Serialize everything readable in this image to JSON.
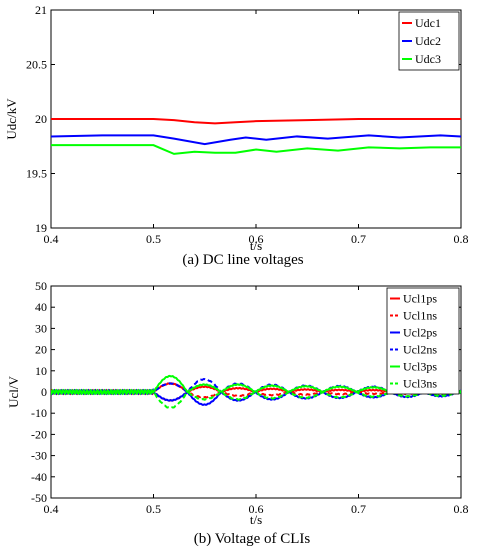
{
  "chart_data": [
    {
      "type": "line",
      "caption": "(a)  DC line voltages",
      "xlabel": "t/s",
      "ylabel": "Udc/kV",
      "xlim": [
        0.4,
        0.8
      ],
      "ylim": [
        19,
        21
      ],
      "xticks": [
        "0.4",
        "0.5",
        "0.6",
        "0.7",
        "0.8"
      ],
      "yticks": [
        "19",
        "19.5",
        "20",
        "20.5",
        "21"
      ],
      "legend_position": "top-right",
      "series": [
        {
          "name": "Udc1",
          "color": "#ff0000",
          "style": "solid",
          "points": [
            [
              0.4,
              20.0
            ],
            [
              0.5,
              20.0
            ],
            [
              0.52,
              19.99
            ],
            [
              0.54,
              19.97
            ],
            [
              0.56,
              19.96
            ],
            [
              0.58,
              19.97
            ],
            [
              0.6,
              19.98
            ],
            [
              0.65,
              19.99
            ],
            [
              0.7,
              20.0
            ],
            [
              0.8,
              20.0
            ]
          ]
        },
        {
          "name": "Udc2",
          "color": "#0000ff",
          "style": "solid",
          "points": [
            [
              0.4,
              19.84
            ],
            [
              0.45,
              19.85
            ],
            [
              0.5,
              19.85
            ],
            [
              0.52,
              19.82
            ],
            [
              0.55,
              19.77
            ],
            [
              0.575,
              19.81
            ],
            [
              0.59,
              19.83
            ],
            [
              0.61,
              19.81
            ],
            [
              0.64,
              19.84
            ],
            [
              0.67,
              19.82
            ],
            [
              0.71,
              19.85
            ],
            [
              0.74,
              19.83
            ],
            [
              0.78,
              19.85
            ],
            [
              0.8,
              19.84
            ]
          ]
        },
        {
          "name": "Udc3",
          "color": "#00ff00",
          "style": "solid",
          "points": [
            [
              0.4,
              19.76
            ],
            [
              0.45,
              19.76
            ],
            [
              0.5,
              19.76
            ],
            [
              0.51,
              19.72
            ],
            [
              0.52,
              19.68
            ],
            [
              0.54,
              19.7
            ],
            [
              0.56,
              19.69
            ],
            [
              0.58,
              19.69
            ],
            [
              0.6,
              19.72
            ],
            [
              0.62,
              19.7
            ],
            [
              0.65,
              19.73
            ],
            [
              0.68,
              19.71
            ],
            [
              0.71,
              19.74
            ],
            [
              0.74,
              19.73
            ],
            [
              0.77,
              19.74
            ],
            [
              0.8,
              19.74
            ]
          ]
        }
      ]
    },
    {
      "type": "line",
      "caption": "(b)  Voltage of CLIs",
      "xlabel": "t/s",
      "ylabel": "Ucl/V",
      "xlim": [
        0.4,
        0.8
      ],
      "ylim": [
        -50,
        50
      ],
      "xticks": [
        "0.4",
        "0.5",
        "0.6",
        "0.7",
        "0.8"
      ],
      "yticks": [
        "-50",
        "-40",
        "-30",
        "-20",
        "-10",
        "0",
        "10",
        "20",
        "30",
        "40",
        "50"
      ],
      "legend_position": "top-right",
      "oscillation": {
        "start": 0.5,
        "end": 0.8,
        "period": 0.033,
        "baseline_amplitude": 0.8
      },
      "series": [
        {
          "name": "Ucl1ps",
          "color": "#ff0000",
          "style": "solid",
          "sign": 1,
          "phase": 0.5,
          "amps": [
            4.0,
            2.5,
            1.8,
            1.5,
            1.2,
            1.0,
            0.9,
            0.8,
            0.7,
            0.6
          ]
        },
        {
          "name": "Ucl1ns",
          "color": "#ff0000",
          "style": "dashed",
          "sign": -1,
          "phase": 0.5,
          "amps": [
            4.0,
            2.5,
            1.8,
            1.5,
            1.2,
            1.0,
            0.9,
            0.8,
            0.7,
            0.6
          ]
        },
        {
          "name": "Ucl2ps",
          "color": "#0000ff",
          "style": "solid",
          "sign": -1,
          "phase": 0.0,
          "amps": [
            4.0,
            6.0,
            4.0,
            3.5,
            3.0,
            2.8,
            2.5,
            2.3,
            2.0,
            1.8
          ]
        },
        {
          "name": "Ucl2ns",
          "color": "#0000ff",
          "style": "dashed",
          "sign": 1,
          "phase": 0.0,
          "amps": [
            4.0,
            6.0,
            4.0,
            3.5,
            3.0,
            2.8,
            2.5,
            2.3,
            2.0,
            1.8
          ]
        },
        {
          "name": "Ucl3ps",
          "color": "#00ff00",
          "style": "solid",
          "sign": 1,
          "phase": 0.0,
          "amps": [
            7.5,
            3.5,
            3.5,
            3.0,
            2.7,
            2.5,
            2.2,
            2.0,
            1.8,
            1.6
          ]
        },
        {
          "name": "Ucl3ns",
          "color": "#00ff00",
          "style": "dashed",
          "sign": -1,
          "phase": 0.0,
          "amps": [
            7.5,
            3.5,
            3.5,
            3.0,
            2.7,
            2.5,
            2.2,
            2.0,
            1.8,
            1.6
          ]
        }
      ]
    }
  ]
}
